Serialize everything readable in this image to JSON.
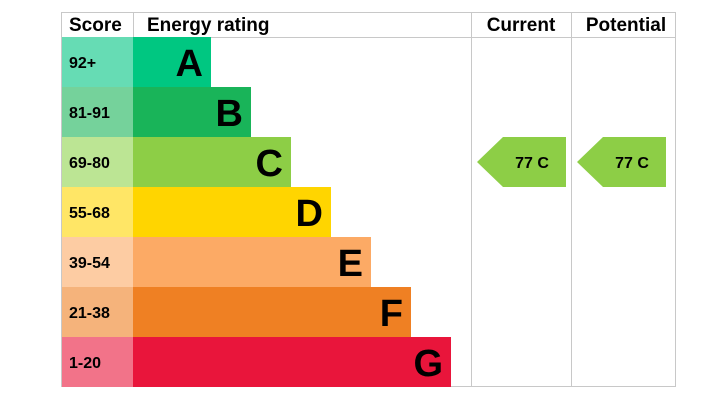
{
  "headers": {
    "score": "Score",
    "rating": "Energy rating",
    "current": "Current",
    "potential": "Potential"
  },
  "chart_data": {
    "type": "bar",
    "bands": [
      {
        "letter": "A",
        "range": "92+",
        "color": "#00c781",
        "score_color": "#66dcb4",
        "letter_color": "#000000"
      },
      {
        "letter": "B",
        "range": "81-91",
        "color": "#19b459",
        "score_color": "#75d29b",
        "letter_color": "#000000"
      },
      {
        "letter": "C",
        "range": "69-80",
        "color": "#8dce46",
        "score_color": "#bce594",
        "letter_color": "#000000"
      },
      {
        "letter": "D",
        "range": "55-68",
        "color": "#ffd500",
        "score_color": "#ffe666",
        "letter_color": "#000000"
      },
      {
        "letter": "E",
        "range": "39-54",
        "color": "#fcaa65",
        "score_color": "#fdcca3",
        "letter_color": "#000000"
      },
      {
        "letter": "F",
        "range": "21-38",
        "color": "#ef8023",
        "score_color": "#f5b37b",
        "letter_color": "#000000"
      },
      {
        "letter": "G",
        "range": "1-20",
        "color": "#e9153b",
        "score_color": "#f27389",
        "letter_color": "#000000"
      }
    ],
    "current": {
      "score": 77,
      "band": "C",
      "label": "77  C",
      "color": "#8dce46"
    },
    "potential": {
      "score": 77,
      "band": "C",
      "label": "77  C",
      "color": "#8dce46"
    }
  }
}
